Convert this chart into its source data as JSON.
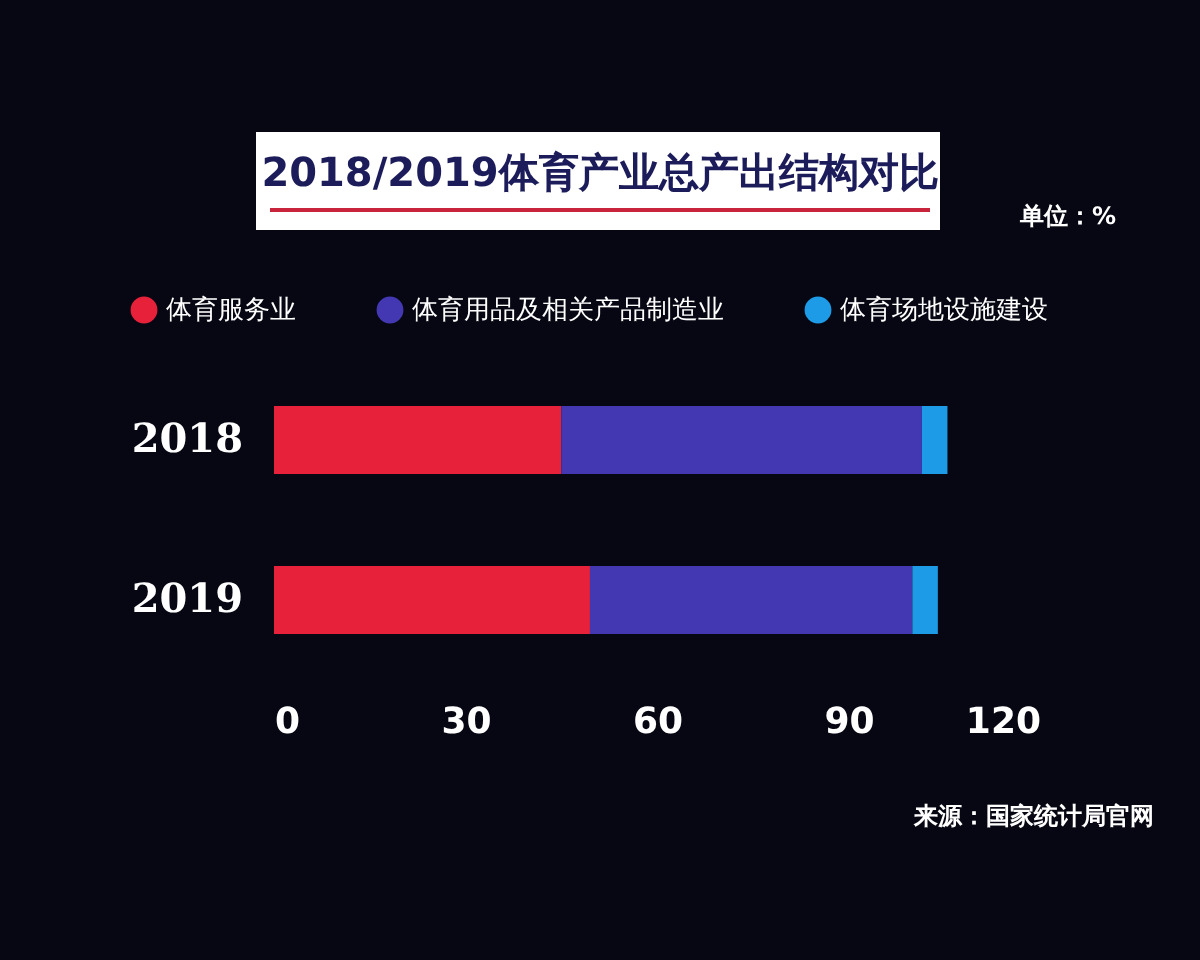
{
  "chart_data": {
    "type": "bar",
    "orientation": "horizontal",
    "stacked": true,
    "title": "2018/2019体育产业总产出结构对比",
    "categories": [
      "2018",
      "2019"
    ],
    "series": [
      {
        "name": "体育服务业",
        "color": "#e8213a",
        "values": [
          45,
          49.5
        ]
      },
      {
        "name": "体育用品及相关产品制造业",
        "color": "#4438b2",
        "values": [
          56.5,
          50.5
        ]
      },
      {
        "name": "体育场地设施建设",
        "color": "#1e9be6",
        "values": [
          4,
          4
        ]
      }
    ],
    "xlim": [
      0,
      120
    ],
    "xticks": [
      0,
      30,
      60,
      90,
      120
    ],
    "legend": "top",
    "annotations": [
      "单位：%",
      "来源：国家统计局官网"
    ]
  }
}
